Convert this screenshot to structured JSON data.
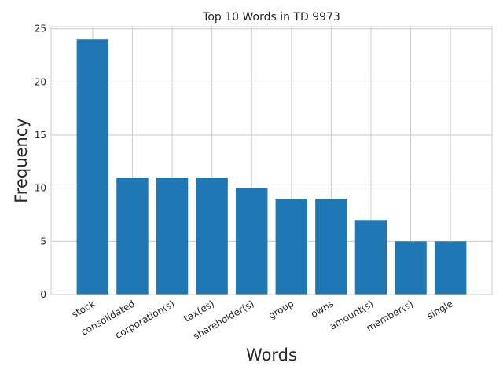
{
  "chart_data": {
    "type": "bar",
    "title": "Top 10 Words in TD 9973",
    "xlabel": "Words",
    "ylabel": "Frequency",
    "categories": [
      "stock",
      "consolidated",
      "corporation(s)",
      "tax(es)",
      "shareholder(s)",
      "group",
      "owns",
      "amount(s)",
      "member(s)",
      "single"
    ],
    "values": [
      24,
      11,
      11,
      11,
      10,
      9,
      9,
      7,
      5,
      5
    ],
    "ylim": [
      0,
      25.2
    ],
    "yticks": [
      0,
      5,
      10,
      15,
      20,
      25
    ],
    "grid": true,
    "legend": "none",
    "colors": {
      "bar": "#1f77b4",
      "grid": "#cccccc",
      "axes": "#cccccc",
      "text": "#262626",
      "background": "#ffffff"
    }
  }
}
